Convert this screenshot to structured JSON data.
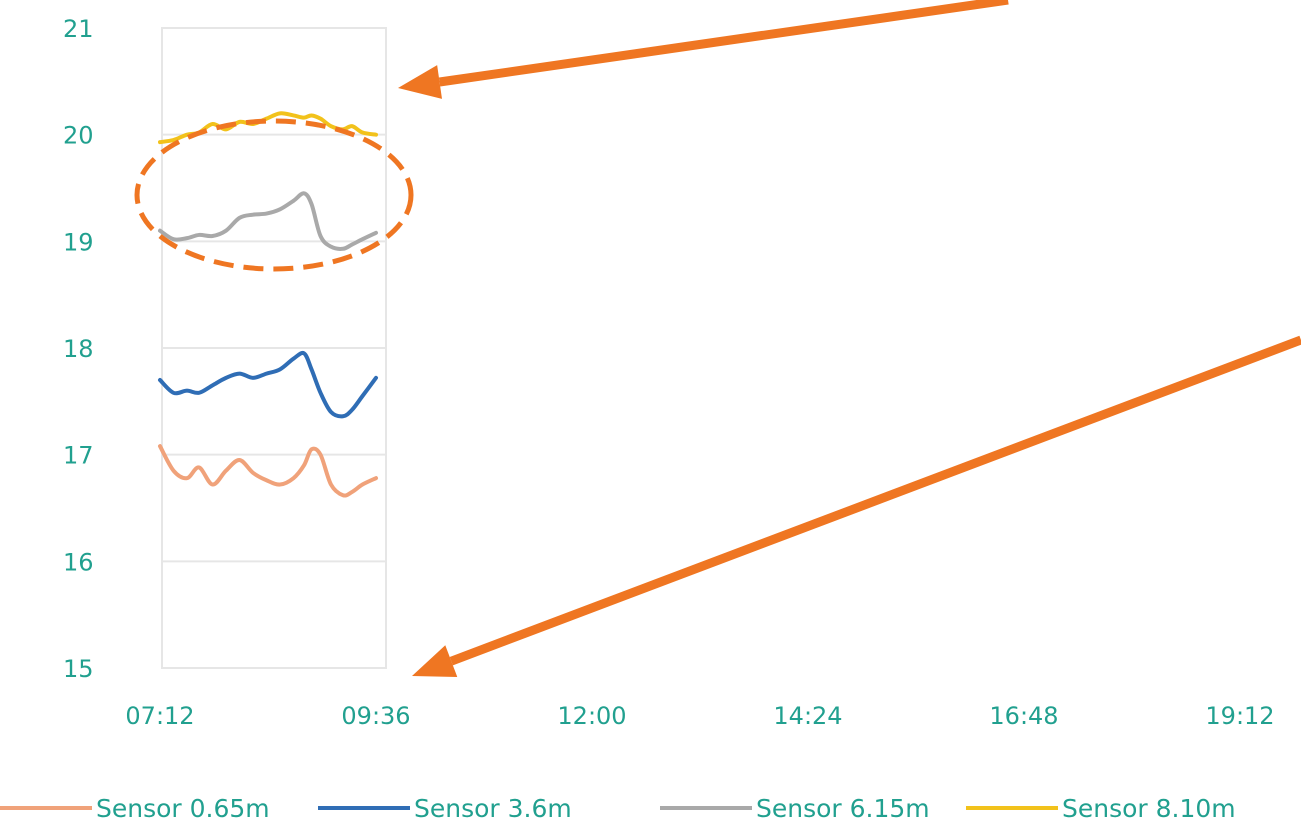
{
  "chart_data": {
    "type": "line",
    "title": "",
    "xlabel": "",
    "ylabel": "",
    "ylim": [
      15,
      21
    ],
    "yticks": [
      15,
      16,
      17,
      18,
      19,
      20,
      21
    ],
    "ytick_labels": [
      "15",
      "16",
      "17",
      "18",
      "19",
      "20",
      "21"
    ],
    "xlim": [
      "07:12",
      "19:12"
    ],
    "xtick_labels": [
      "07:12",
      "09:36",
      "12:00",
      "14:24",
      "16:48",
      "19:12"
    ],
    "grid": true,
    "legend_position": "bottom",
    "series": [
      {
        "name": "Sensor 0.65m",
        "color": "#F0A27A",
        "x": [
          "07:12",
          "07:21",
          "07:30",
          "07:38",
          "07:47",
          "07:56",
          "08:05",
          "08:14",
          "08:23",
          "08:32",
          "08:41",
          "08:48",
          "08:53",
          "08:59",
          "09:06",
          "09:14",
          "09:20",
          "09:27",
          "09:36"
        ],
        "y": [
          17.08,
          16.85,
          16.78,
          16.88,
          16.72,
          16.85,
          16.95,
          16.83,
          16.76,
          16.72,
          16.78,
          16.9,
          17.05,
          17.0,
          16.72,
          16.62,
          16.65,
          16.72,
          16.78
        ]
      },
      {
        "name": "Sensor 3.6m",
        "color": "#2F6DB5",
        "x": [
          "07:12",
          "07:21",
          "07:30",
          "07:38",
          "07:47",
          "07:56",
          "08:05",
          "08:14",
          "08:23",
          "08:32",
          "08:41",
          "08:48",
          "08:53",
          "08:59",
          "09:06",
          "09:14",
          "09:20",
          "09:27",
          "09:36"
        ],
        "y": [
          17.7,
          17.58,
          17.6,
          17.58,
          17.65,
          17.72,
          17.76,
          17.72,
          17.76,
          17.8,
          17.9,
          17.95,
          17.8,
          17.58,
          17.4,
          17.36,
          17.42,
          17.55,
          17.72
        ]
      },
      {
        "name": "Sensor 6.15m",
        "color": "#A9A9A9",
        "x": [
          "07:12",
          "07:21",
          "07:30",
          "07:38",
          "07:47",
          "07:56",
          "08:05",
          "08:14",
          "08:23",
          "08:32",
          "08:41",
          "08:48",
          "08:53",
          "08:59",
          "09:06",
          "09:14",
          "09:20",
          "09:27",
          "09:36"
        ],
        "y": [
          19.1,
          19.02,
          19.03,
          19.06,
          19.05,
          19.1,
          19.22,
          19.25,
          19.26,
          19.3,
          19.38,
          19.45,
          19.35,
          19.05,
          18.95,
          18.93,
          18.97,
          19.02,
          19.08
        ]
      },
      {
        "name": "Sensor 8.10m",
        "color": "#F2C21B",
        "x": [
          "07:12",
          "07:21",
          "07:30",
          "07:38",
          "07:47",
          "07:56",
          "08:05",
          "08:14",
          "08:23",
          "08:32",
          "08:41",
          "08:48",
          "08:53",
          "08:59",
          "09:06",
          "09:14",
          "09:20",
          "09:27",
          "09:36"
        ],
        "y": [
          19.93,
          19.95,
          20.0,
          20.02,
          20.1,
          20.05,
          20.12,
          20.1,
          20.15,
          20.2,
          20.18,
          20.16,
          20.18,
          20.15,
          20.08,
          20.05,
          20.08,
          20.02,
          20.0
        ]
      }
    ]
  },
  "colors": {
    "tick_text": "#21A08F",
    "legend_text": "#21A08F",
    "grid": "#E6E6E6",
    "annotation": "#EF7622"
  }
}
